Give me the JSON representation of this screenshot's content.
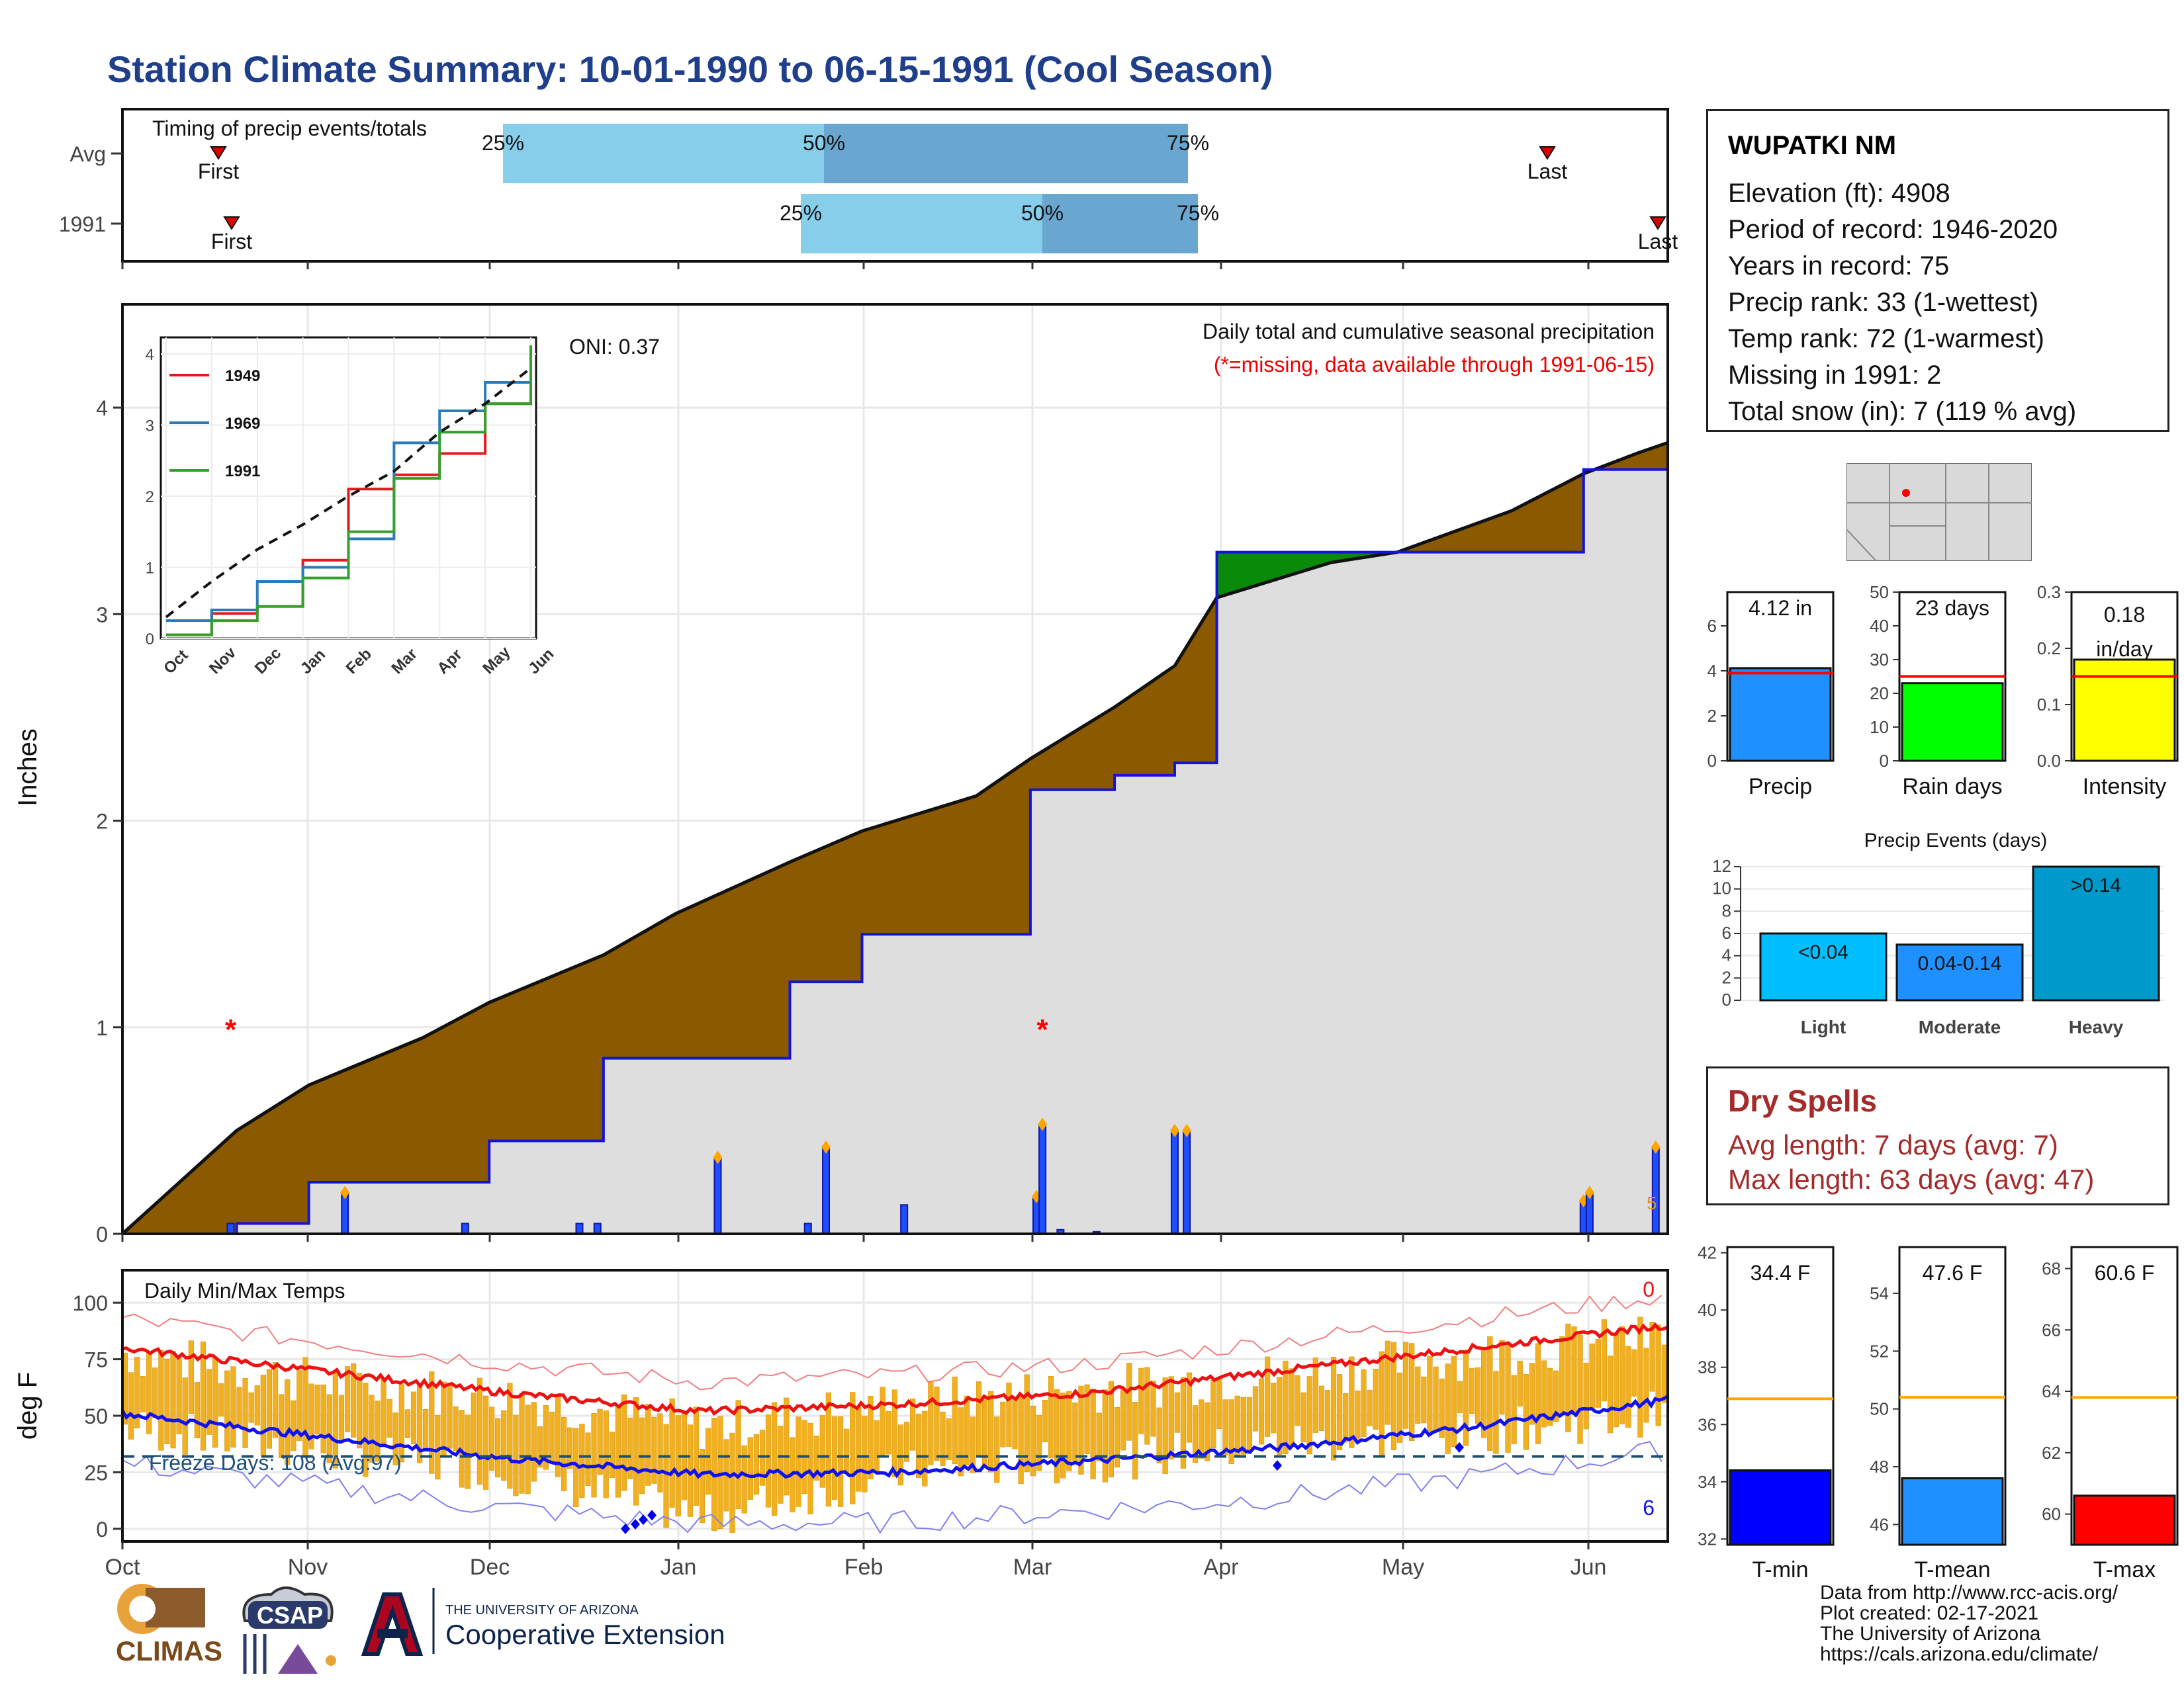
{
  "title": "Station Climate Summary: 10-01-1990 to 06-15-1991 (Cool Season)",
  "timing_panel": {
    "title": "Timing of precip events/totals",
    "rows": [
      {
        "label": "Avg",
        "first": "First",
        "last": "Last",
        "q25": "25%",
        "q50": "50%",
        "q75": "75%"
      },
      {
        "label": "1991",
        "first": "First",
        "last": "Last",
        "q25": "25%",
        "q50": "50%",
        "q75": "75%"
      }
    ]
  },
  "station": {
    "name": "WUPATKI NM",
    "lines": [
      "Elevation (ft): 4908",
      "Period of record: 1946-2020",
      "Years in record: 75",
      "Precip rank: 33 (1-wettest)",
      "Temp rank: 72 (1-warmest)",
      "Missing in 1991: 2",
      "Total snow (in): 7 (119 % avg)"
    ]
  },
  "main_panel": {
    "ylabel": "Inches",
    "oni": "ONI: 0.37",
    "caption1": "Daily total and cumulative seasonal precipitation",
    "caption2": "(*=missing, data available through 1991-06-15)",
    "months": [
      "Oct",
      "Nov",
      "Dec",
      "Jan",
      "Feb",
      "Mar",
      "Apr",
      "May",
      "Jun"
    ],
    "end_marker": "5"
  },
  "inset": {
    "legend": [
      "1949",
      "1969",
      "1991"
    ],
    "colors": [
      "#e31a1c",
      "#2b7bba",
      "#33a02c"
    ],
    "months": [
      "Oct",
      "Nov",
      "Dec",
      "Jan",
      "Feb",
      "Mar",
      "Apr",
      "May",
      "Jun"
    ]
  },
  "temp_panel": {
    "ylabel": "deg F",
    "title": "Daily Min/Max Temps",
    "freeze": "Freeze Days: 108 (Avg:97)",
    "top_count": "0",
    "bottom_count": "6"
  },
  "bar_panels": {
    "precip": {
      "label": "Precip",
      "value_text": "4.12 in",
      "color": "#1e90ff"
    },
    "raindays": {
      "label": "Rain days",
      "value_text": "23 days",
      "color": "#00ff00"
    },
    "intensity": {
      "label": "Intensity",
      "value_text": "0.18 in/day",
      "color": "#ffff00"
    }
  },
  "events": {
    "title": "Precip Events (days)",
    "categories": [
      "Light",
      "Moderate",
      "Heavy"
    ],
    "labels": [
      "<0.04",
      "0.04-0.14",
      ">0.14"
    ]
  },
  "dry_spells": {
    "title": "Dry Spells",
    "avg": "Avg length: 7 days (avg: 7)",
    "max": "Max length: 63 days (avg: 47)"
  },
  "temp_bars": {
    "tmin": {
      "label": "T-min",
      "value_text": "34.4 F"
    },
    "tmean": {
      "label": "T-mean",
      "value_text": "47.6 F"
    },
    "tmax": {
      "label": "T-max",
      "value_text": "60.6 F"
    }
  },
  "logos": {
    "climas": "CLIMAS",
    "csap": "CSAP",
    "ua_small": "THE UNIVERSITY OF ARIZONA",
    "ua_big": "Cooperative Extension"
  },
  "credits": [
    "Data from http://www.rcc-acis.org/",
    "Plot created: 02-17-2021",
    "The University of Arizona",
    "https://cals.arizona.edu/climate/"
  ],
  "chart_data": [
    {
      "type": "area",
      "name": "cumulative precipitation",
      "xlabel": "",
      "ylabel": "Inches",
      "ylim": [
        0,
        4.5
      ],
      "x_dates": [
        "1990-10-01",
        "1990-10-20",
        "1990-11-01",
        "1990-11-20",
        "1990-12-01",
        "1990-12-20",
        "1991-01-01",
        "1991-01-20",
        "1991-02-01",
        "1991-02-20",
        "1991-03-01",
        "1991-03-15",
        "1991-03-25",
        "1991-04-01",
        "1991-04-20",
        "1991-05-01",
        "1991-05-20",
        "1991-06-01",
        "1991-06-10",
        "1991-06-15"
      ],
      "series": [
        {
          "name": "avg",
          "values": [
            0,
            0.5,
            0.72,
            0.95,
            1.12,
            1.35,
            1.55,
            1.8,
            1.95,
            2.12,
            2.3,
            2.55,
            2.75,
            3.08,
            3.25,
            3.3,
            3.5,
            3.68,
            3.78,
            3.83
          ]
        },
        {
          "name": "1991",
          "values": [
            0,
            0.05,
            0.25,
            0.25,
            0.45,
            0.85,
            0.85,
            1.22,
            1.45,
            1.45,
            2.15,
            2.22,
            2.28,
            3.3,
            3.3,
            3.3,
            3.3,
            3.7,
            3.7,
            4.12
          ]
        }
      ],
      "daily": [
        {
          "date": "1990-10-19",
          "value": 0.05
        },
        {
          "date": "1990-11-07",
          "value": 0.2
        },
        {
          "date": "1990-11-27",
          "value": 0.05
        },
        {
          "date": "1990-12-16",
          "value": 0.05
        },
        {
          "date": "1990-12-19",
          "value": 0.05
        },
        {
          "date": "1991-01-08",
          "value": 0.37
        },
        {
          "date": "1991-01-23",
          "value": 0.05
        },
        {
          "date": "1991-01-26",
          "value": 0.42
        },
        {
          "date": "1991-02-08",
          "value": 0.14
        },
        {
          "date": "1991-03-02",
          "value": 0.18
        },
        {
          "date": "1991-03-03",
          "value": 0.53
        },
        {
          "date": "1991-03-06",
          "value": 0.02
        },
        {
          "date": "1991-03-12",
          "value": 0.01
        },
        {
          "date": "1991-03-25",
          "value": 0.5
        },
        {
          "date": "1991-03-27",
          "value": 0.5
        },
        {
          "date": "1991-06-01",
          "value": 0.16
        },
        {
          "date": "1991-06-02",
          "value": 0.2
        },
        {
          "date": "1991-06-13",
          "value": 0.42
        }
      ],
      "missing_dates": [
        "1990-10-19",
        "1991-03-03"
      ]
    },
    {
      "type": "line",
      "name": "inset cumulative comparison",
      "ylim": [
        0,
        4
      ],
      "x_months": [
        "Oct",
        "Nov",
        "Dec",
        "Jan",
        "Feb",
        "Mar",
        "Apr",
        "May",
        "Jun"
      ],
      "series": [
        {
          "name": "1949",
          "values": [
            0.05,
            0.35,
            0.45,
            1.1,
            2.1,
            2.3,
            2.6,
            3.3,
            3.8
          ]
        },
        {
          "name": "1969",
          "values": [
            0.25,
            0.4,
            0.8,
            1.0,
            1.4,
            2.75,
            3.2,
            3.6,
            3.8
          ]
        },
        {
          "name": "1991",
          "values": [
            0.05,
            0.25,
            0.45,
            0.85,
            1.5,
            2.25,
            2.9,
            3.3,
            4.12
          ]
        },
        {
          "name": "avg",
          "values": [
            0.3,
            0.8,
            1.25,
            1.6,
            2.0,
            2.35,
            2.9,
            3.3,
            3.8
          ]
        }
      ]
    },
    {
      "type": "line",
      "name": "daily min/max temps",
      "ylabel": "deg F",
      "ylim": [
        -10,
        110
      ],
      "x_months": [
        "Oct",
        "Nov",
        "Dec",
        "Jan",
        "Feb",
        "Mar",
        "Apr",
        "May",
        "Jun"
      ],
      "series": [
        {
          "name": "avg max",
          "values": [
            80,
            70,
            60,
            52,
            55,
            60,
            70,
            80,
            90
          ]
        },
        {
          "name": "avg min",
          "values": [
            51,
            41,
            31,
            24,
            25,
            30,
            36,
            45,
            57
          ]
        },
        {
          "name": "1991 max",
          "values": [
            78,
            65,
            58,
            45,
            55,
            62,
            68,
            77,
            85
          ]
        },
        {
          "name": "1991 min",
          "values": [
            45,
            35,
            25,
            5,
            25,
            30,
            38,
            42,
            52
          ]
        }
      ],
      "freeze_line": 32
    },
    {
      "type": "bar",
      "name": "season totals",
      "categories": [
        "Precip",
        "Rain days",
        "Intensity"
      ],
      "values": [
        4.12,
        23,
        0.18
      ],
      "averages": [
        3.9,
        25,
        0.15
      ],
      "ylims": [
        [
          0,
          7.5
        ],
        [
          0,
          50
        ],
        [
          0,
          0.3
        ]
      ]
    },
    {
      "type": "bar",
      "name": "Precip Events (days)",
      "categories": [
        "Light",
        "Moderate",
        "Heavy"
      ],
      "values": [
        6,
        5,
        12
      ],
      "ylim": [
        0,
        12
      ]
    },
    {
      "type": "bar",
      "name": "temperature means",
      "categories": [
        "T-min",
        "T-mean",
        "T-max"
      ],
      "values": [
        34.4,
        47.6,
        60.6
      ],
      "averages": [
        36.9,
        50.4,
        63.8
      ],
      "ylims": [
        [
          31.8,
          42.2
        ],
        [
          45.3,
          55.6
        ],
        [
          59,
          68.7
        ]
      ]
    }
  ]
}
